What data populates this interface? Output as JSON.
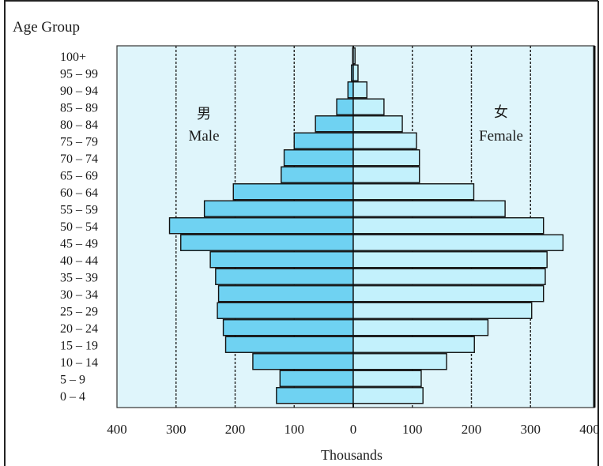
{
  "chart_data": {
    "type": "bar",
    "orientation": "horizontal-population-pyramid",
    "title": "",
    "ylabel": "Age Group",
    "xlabel": "Thousands",
    "xlim": [
      -400,
      400
    ],
    "xticks": [
      -400,
      -300,
      -200,
      -100,
      0,
      100,
      200,
      300,
      400
    ],
    "xtick_labels": [
      "400",
      "300",
      "200",
      "100",
      "0",
      "100",
      "200",
      "300",
      "400"
    ],
    "gridlines_at": [
      -300,
      -200,
      -100,
      100,
      200,
      300
    ],
    "grid_style": "dashed-vertical",
    "categories": [
      "0 – 4",
      "5 – 9",
      "10 – 14",
      "15 – 19",
      "20 – 24",
      "25 – 29",
      "30 – 34",
      "35 – 39",
      "40 – 44",
      "45 – 49",
      "50 – 54",
      "55 – 59",
      "60 – 64",
      "65 – 69",
      "70 – 74",
      "75 – 79",
      "80 – 84",
      "85 – 89",
      "90 – 94",
      "95 – 99",
      "100+"
    ],
    "series": [
      {
        "name": "Male",
        "name_cn": "男",
        "side": "left",
        "color": "#6fd2f2",
        "values": [
          130,
          124,
          170,
          216,
          220,
          230,
          228,
          233,
          242,
          292,
          311,
          252,
          203,
          122,
          117,
          100,
          64,
          28,
          9,
          3,
          1
        ]
      },
      {
        "name": "Female",
        "name_cn": "女",
        "side": "right",
        "color": "#c3f1fc",
        "values": [
          118,
          115,
          158,
          205,
          228,
          302,
          322,
          325,
          328,
          355,
          322,
          257,
          204,
          112,
          112,
          107,
          83,
          52,
          23,
          8,
          3
        ]
      }
    ],
    "plot_background": "#dff5fb",
    "legend": "inline-labels"
  }
}
